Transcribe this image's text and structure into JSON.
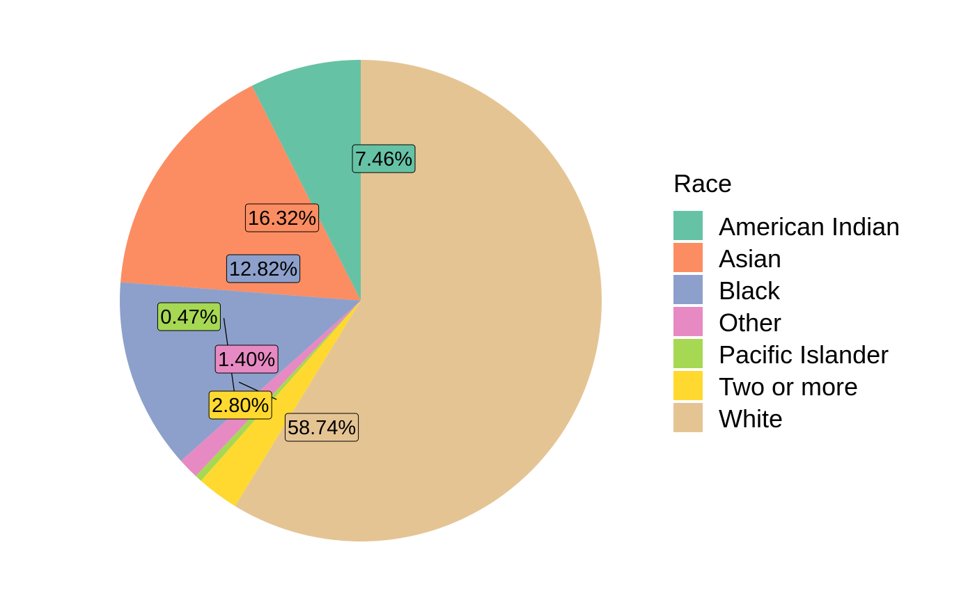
{
  "chart_data": {
    "type": "pie",
    "legend_title": "Race",
    "legend_position": "right",
    "slices": [
      {
        "name": "American Indian",
        "value": 7.46,
        "label": "7.46%",
        "color": "#66c2a5"
      },
      {
        "name": "Asian",
        "value": 16.32,
        "label": "16.32%",
        "color": "#fc8d62"
      },
      {
        "name": "Black",
        "value": 12.82,
        "label": "12.82%",
        "color": "#8da0cb"
      },
      {
        "name": "Other",
        "value": 1.4,
        "label": "1.40%",
        "color": "#e78ac3"
      },
      {
        "name": "Pacific Islander",
        "value": 0.47,
        "label": "0.47%",
        "color": "#a6d854"
      },
      {
        "name": "Two or more",
        "value": 2.8,
        "label": "2.80%",
        "color": "#ffd92f"
      },
      {
        "name": "White",
        "value": 58.74,
        "label": "58.74%",
        "color": "#e5c494"
      }
    ]
  }
}
